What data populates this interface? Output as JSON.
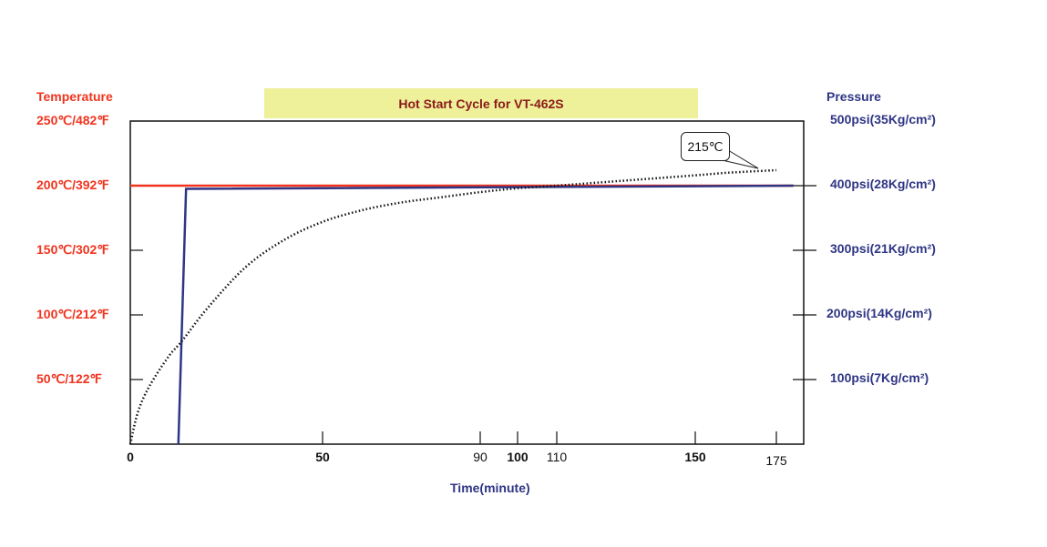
{
  "chart_data": {
    "type": "line",
    "title": "Hot Start Cycle for VT-462S",
    "xlabel": "Time(minute)",
    "ylabel_left": "Temperature",
    "ylabel_right": "Pressure",
    "x_ticks": [
      0,
      50,
      90,
      100,
      110,
      150,
      175
    ],
    "x_tick_labels": [
      "0",
      "50",
      "90",
      "100",
      "110",
      "150",
      "175"
    ],
    "x_tick_bold": [
      true,
      true,
      false,
      true,
      false,
      true,
      false
    ],
    "xlim": [
      0,
      183
    ],
    "y_left_ticks": [
      50,
      100,
      150,
      200,
      250
    ],
    "y_left_tick_labels": [
      "50℃/122℉",
      "100℃/212℉",
      "150℃/302℉",
      "200℃/392℉",
      "250℃/482℉"
    ],
    "ylim_left": [
      0,
      250
    ],
    "y_right_ticks": [
      100,
      200,
      300,
      400,
      500
    ],
    "y_right_tick_labels": [
      "100psi(7Kg/cm²)",
      "200psi(14Kg/cm²)",
      "300psi(21Kg/cm²)",
      "400psi(28Kg/cm²)",
      "500psi(35Kg/cm²)"
    ],
    "ylim_right": [
      0,
      500
    ],
    "grid": false,
    "annotation": "215℃",
    "series": [
      {
        "axis": "left",
        "style": "solid",
        "color": "#f0341f",
        "x": [
          0,
          180
        ],
        "y": [
          200,
          200
        ]
      },
      {
        "axis": "right",
        "style": "solid",
        "color": "#2f3584",
        "x": [
          12.5,
          14.5,
          180
        ],
        "y": [
          0,
          395,
          400
        ]
      },
      {
        "axis": "left",
        "style": "dotted",
        "color": "#111111",
        "x": [
          0,
          2,
          5,
          10,
          13.5,
          20,
          30,
          40,
          50,
          60,
          70,
          80,
          90,
          100,
          110,
          120,
          130,
          140,
          150,
          160,
          175
        ],
        "y": [
          0,
          25,
          45,
          68,
          80,
          105,
          137,
          158,
          172,
          181,
          187,
          191,
          195,
          198,
          200,
          202,
          204,
          206,
          208,
          210,
          212
        ]
      }
    ]
  }
}
